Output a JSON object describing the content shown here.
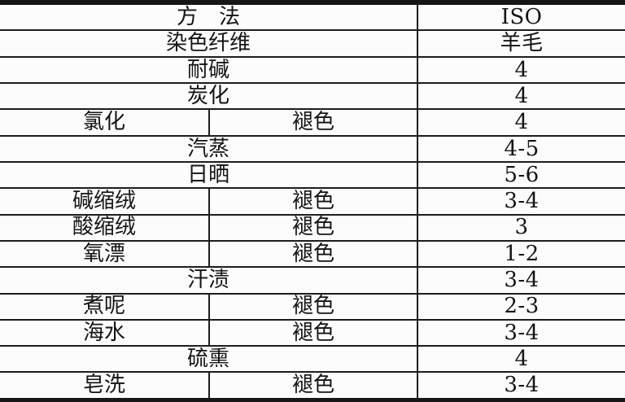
{
  "document": {
    "type": "scanned-table",
    "language": "zh",
    "colors": {
      "background": "#fcfcfc",
      "line": "#1d1d1d",
      "text": "#141414"
    },
    "table": {
      "columns": {
        "method_group_label": "方　法",
        "standard_label": "ISO"
      },
      "rows": [
        {
          "label": "方　法",
          "value": "ISO"
        },
        {
          "label": "染色纤维",
          "value": "羊毛"
        },
        {
          "label": "耐碱",
          "value": "4"
        },
        {
          "label": "炭化",
          "value": "4"
        },
        {
          "label": "氯化",
          "sublabel": "褪色",
          "value": "4"
        },
        {
          "label": "汽蒸",
          "value": "4-5"
        },
        {
          "label": "日晒",
          "value": "5-6"
        },
        {
          "label": "碱缩绒",
          "sublabel": "褪色",
          "value": "3-4"
        },
        {
          "label": "酸缩绒",
          "sublabel": "褪色",
          "value": "3"
        },
        {
          "label": "氧漂",
          "sublabel": "褪色",
          "value": "1-2"
        },
        {
          "label": "汗渍",
          "value": "3-4"
        },
        {
          "label": "煮呢",
          "sublabel": "褪色",
          "value": "2-3"
        },
        {
          "label": "海水",
          "sublabel": "褪色",
          "value": "3-4"
        },
        {
          "label": "硫熏",
          "value": "4"
        },
        {
          "label": "皂洗",
          "sublabel": "褪色",
          "value": "3-4"
        }
      ]
    }
  }
}
